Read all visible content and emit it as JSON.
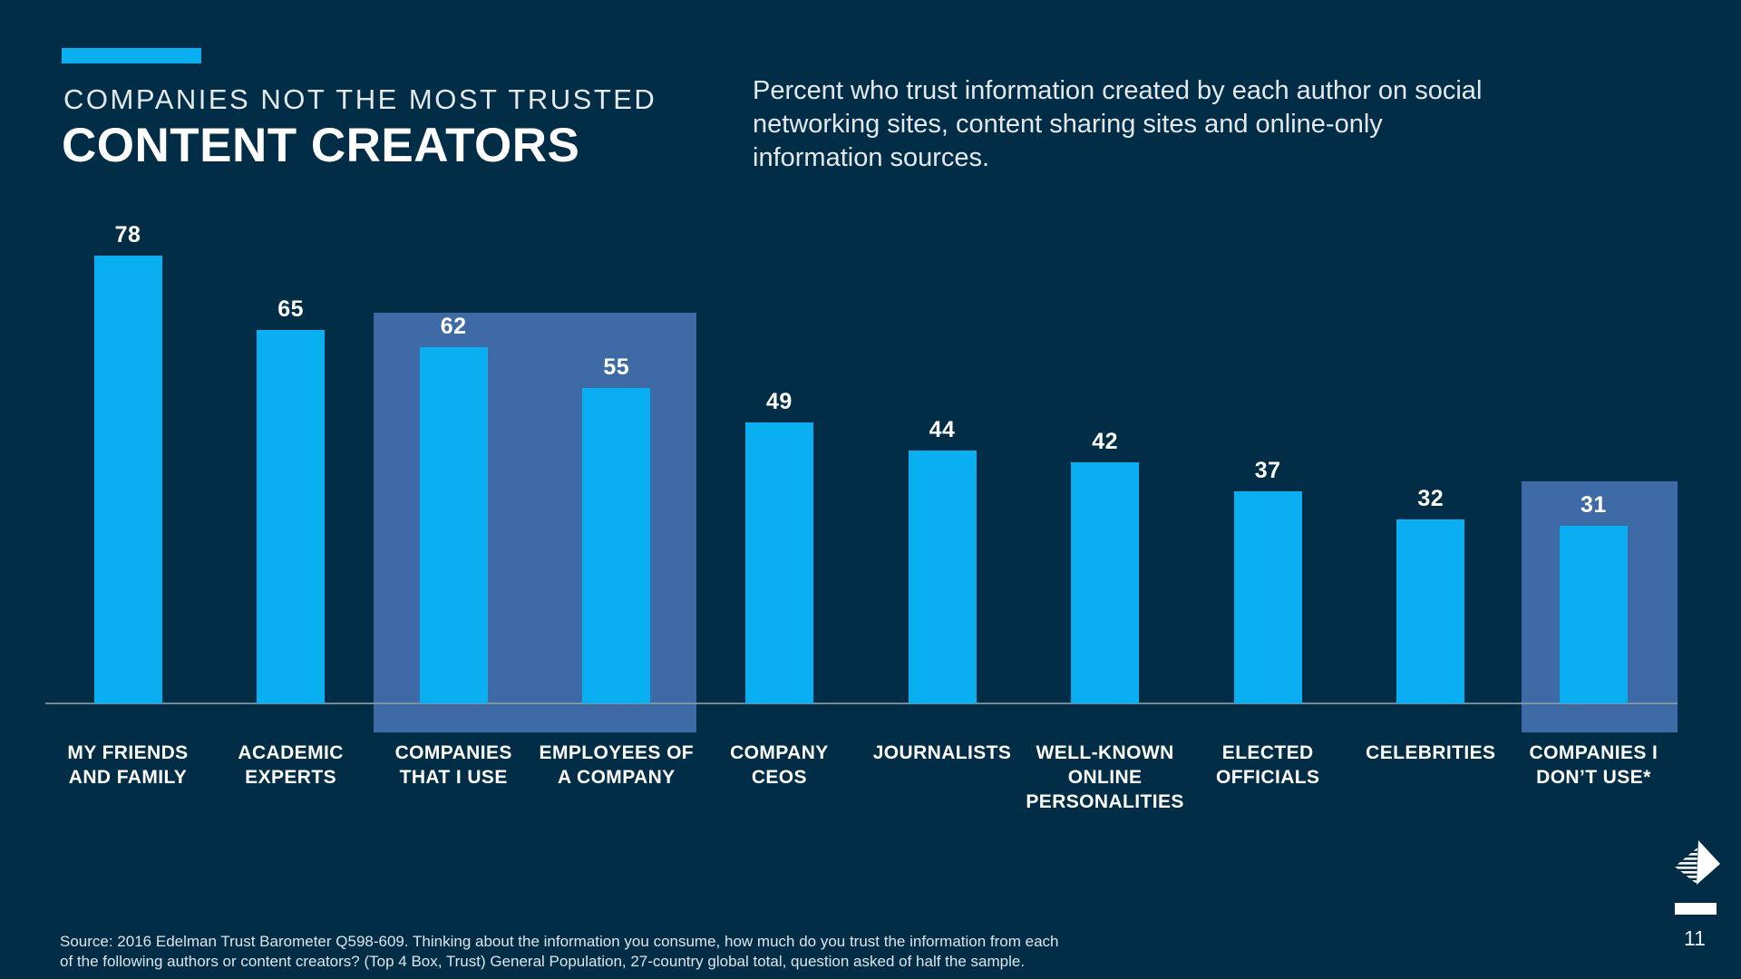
{
  "slide": {
    "kicker": "COMPANIES NOT THE MOST TRUSTED",
    "title": "CONTENT CREATORS",
    "subtitle": "Percent who trust information created by each author on social networking sites, content sharing sites and online-only information sources.",
    "source_line1": "Source: 2016 Edelman Trust Barometer Q598-609. Thinking about the information you consume, how much do you trust the information from each",
    "source_line2": "of the following authors or content creators? (Top 4 Box, Trust) General Population, 27-country global total, question asked of half the sample.",
    "page_number": "11",
    "nav_arrow_icon": "next-page-striped-arrow-icon"
  },
  "colors": {
    "background": "#022D47",
    "bar": "#09AFF0",
    "accent": "#09AFF0",
    "highlight_box": "#3E6BA6",
    "axis_line": "#8D9AA4",
    "text_primary": "#FFFFFF",
    "text_muted": "#DCE5EB"
  },
  "chart_data": {
    "type": "bar",
    "title": "Percent who trust information created by each author on social networking sites, content sharing sites and online-only information sources.",
    "categories": [
      "MY FRIENDS AND FAMILY",
      "ACADEMIC EXPERTS",
      "COMPANIES THAT I USE",
      "EMPLOYEES OF A COMPANY",
      "COMPANY CEOS",
      "JOURNALISTS",
      "WELL-KNOWN ONLINE PERSONALITIES",
      "ELECTED OFFICIALS",
      "CELEBRITIES",
      "COMPANIES I DON’T USE*"
    ],
    "category_label_lines": [
      [
        "MY FRIENDS",
        "AND FAMILY"
      ],
      [
        "ACADEMIC",
        "EXPERTS"
      ],
      [
        "COMPANIES",
        "THAT I USE"
      ],
      [
        "EMPLOYEES OF",
        "A COMPANY"
      ],
      [
        "COMPANY",
        "CEOS"
      ],
      [
        "JOURNALISTS"
      ],
      [
        "WELL-KNOWN",
        "ONLINE",
        "PERSONALITIES"
      ],
      [
        "ELECTED",
        "OFFICIALS"
      ],
      [
        "CELEBRITIES"
      ],
      [
        "COMPANIES I",
        "DON’T USE*"
      ]
    ],
    "values": [
      78,
      65,
      62,
      55,
      49,
      44,
      42,
      37,
      32,
      31
    ],
    "data_labels": true,
    "highlight_groups": [
      {
        "category_indices": [
          2,
          3
        ],
        "categories": [
          "COMPANIES THAT I USE",
          "EMPLOYEES OF A COMPANY"
        ]
      },
      {
        "category_indices": [
          9
        ],
        "categories": [
          "COMPANIES I DON’T USE*"
        ]
      }
    ],
    "xlabel": "",
    "ylabel": "",
    "ylim": [
      0,
      100
    ],
    "grid": false,
    "legend": false
  }
}
